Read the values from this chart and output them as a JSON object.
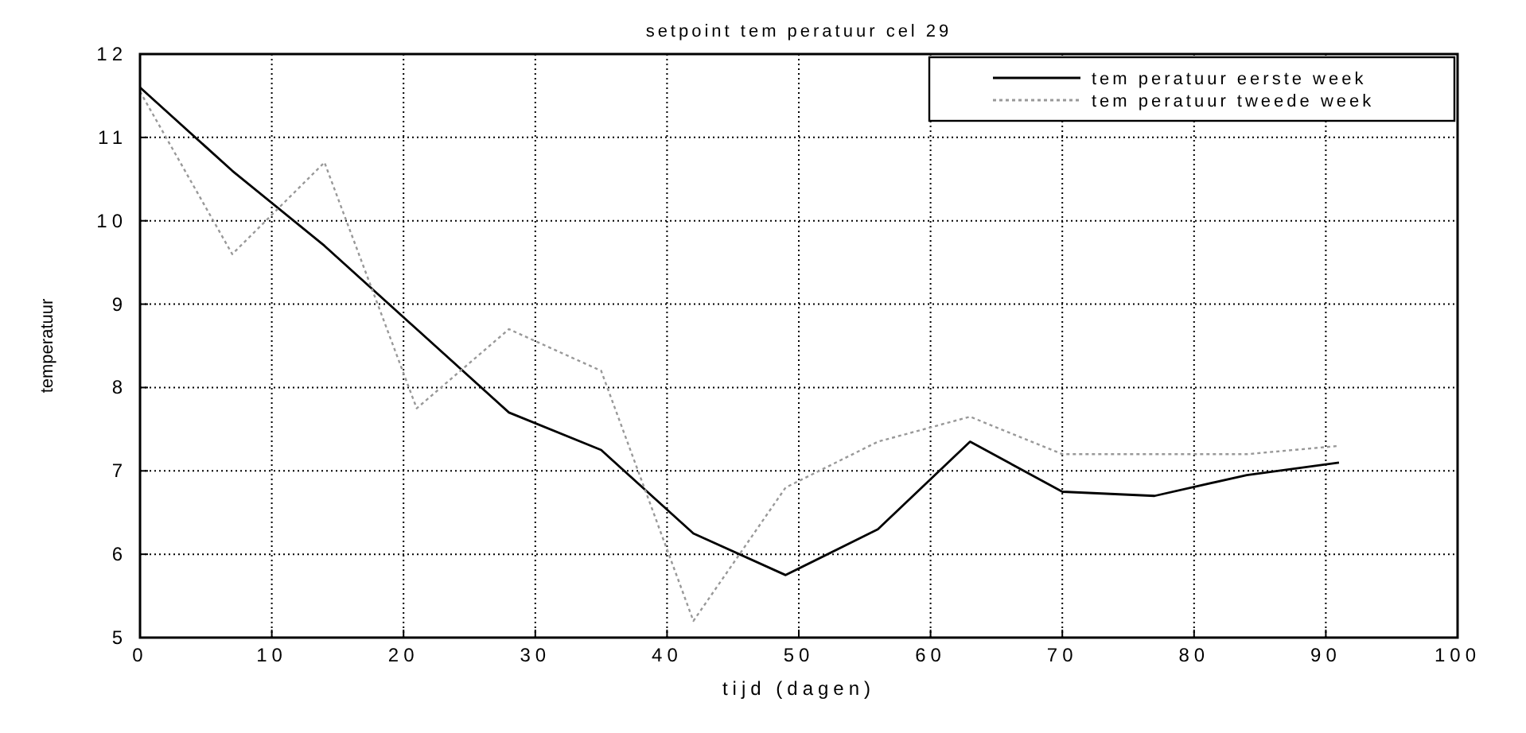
{
  "chart_data": {
    "type": "line",
    "title": "setpoint tem peratuur cel 29",
    "xlabel": "tijd (dagen)",
    "ylabel": "temperatuur",
    "x": [
      0,
      7,
      14,
      21,
      28,
      35,
      42,
      49,
      56,
      63,
      70,
      77,
      84,
      91
    ],
    "series": [
      {
        "name": "tem peratuur eerste week",
        "color": "#000000",
        "line_style": "solid",
        "values": [
          11.6,
          10.6,
          9.7,
          8.7,
          7.7,
          7.25,
          6.25,
          5.75,
          6.3,
          7.35,
          6.75,
          6.7,
          6.95,
          7.1
        ]
      },
      {
        "name": "tem peratuur tweede week",
        "color": "#999999",
        "line_style": "dotted",
        "values": [
          11.55,
          9.6,
          10.7,
          7.75,
          8.7,
          8.2,
          5.2,
          6.8,
          7.35,
          7.65,
          7.2,
          7.2,
          7.2,
          7.3
        ]
      }
    ],
    "xlim": [
      0,
      100
    ],
    "xticks": [
      0,
      10,
      20,
      30,
      40,
      50,
      60,
      70,
      80,
      90,
      100
    ],
    "ylim": [
      5,
      12
    ],
    "yticks": [
      5,
      6,
      7,
      8,
      9,
      10,
      11,
      12
    ],
    "grid": true,
    "legend": "top right",
    "marker": "none"
  }
}
